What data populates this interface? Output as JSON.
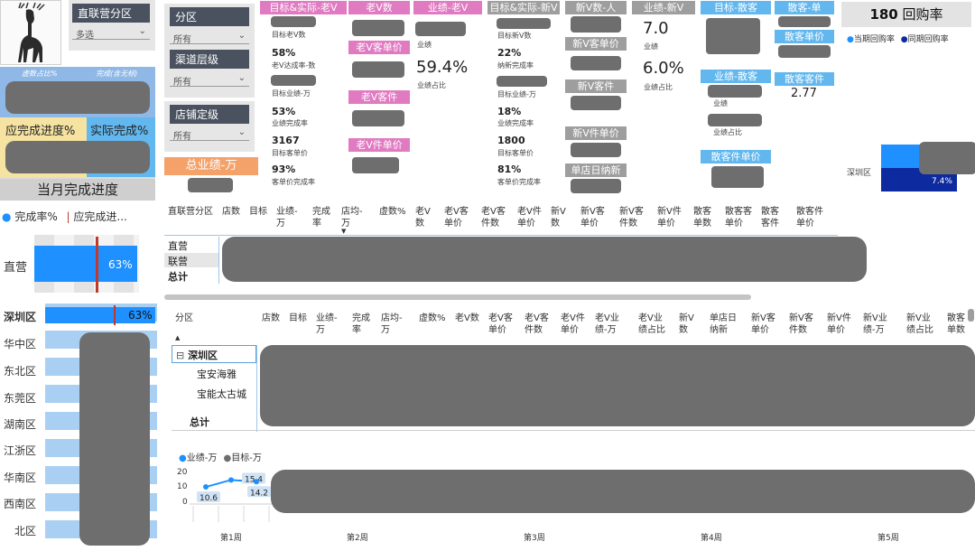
{
  "slicers": {
    "region": {
      "title": "直联营分区",
      "value": "多选"
    },
    "zone": {
      "title": "分区",
      "value": "所有"
    },
    "channel": {
      "title": "渠道层级",
      "value": "所有"
    },
    "store_level": {
      "title": "店铺定级",
      "value": "所有"
    }
  },
  "left_cards": {
    "virtual_ratio_label": "虚数占比%",
    "completion_label": "完成(含无标)",
    "should_progress": "应完成进度%",
    "actual_progress": "实际完成%",
    "month_progress_title": "当月完成进度",
    "total_perf": "总业绩-万"
  },
  "old_v": {
    "header_target": "目标&实际-老V",
    "target_old_v_label": "目标老V数",
    "rate_pct": "58%",
    "rate_label": "老V达成率-数",
    "target_perf_label": "目标业绩-万",
    "perf_rate_pct": "53%",
    "perf_rate_label": "业绩完成率",
    "target_unit_price": "3167",
    "target_unit_price_label": "目标客单价",
    "unit_price_rate": "93%",
    "unit_price_rate_label": "客单价完成率",
    "count_header": "老V数",
    "unit_price_header": "老V客单价",
    "item_price_header": "老V客件",
    "item_unit_header": "老V件单价",
    "perf_header": "业绩-老V",
    "perf_label": "业绩",
    "perf_share": "59.4%",
    "perf_share_label": "业绩占比"
  },
  "new_v": {
    "header_target": "目标&实际-新V",
    "target_new_v_label": "目标新V数",
    "rate_pct": "22%",
    "rate_label": "纳新完成率",
    "target_perf_label": "目标业绩-万",
    "perf_rate_pct": "18%",
    "perf_rate_label": "业绩完成率",
    "target_unit_price": "1800",
    "target_unit_price_label": "目标客单价",
    "unit_price_rate": "81%",
    "unit_price_rate_label": "客单价完成率",
    "count_header": "新V数-人",
    "unit_price_header": "新V客单价",
    "item_header": "新V客件",
    "item_unit_header": "新V件单价",
    "store_daily_header": "单店日纳新",
    "perf_header": "业绩-新V",
    "perf_value": "7.0",
    "perf_label": "业绩",
    "perf_share": "6.0%",
    "perf_share_label": "业绩占比"
  },
  "walkin": {
    "target_header": "目标-散客",
    "perf_header": "业绩-散客",
    "perf_label": "业绩",
    "perf_share_label": "业绩占比",
    "single_header": "散客-单",
    "unit_price_header": "散客单价",
    "item_header": "散客客件",
    "item_value": "2.77",
    "item_unit_header": "散客件单价"
  },
  "repurchase": {
    "count": "180",
    "title": "回购率",
    "legend_current": "当期回购率",
    "legend_prior": "同期回购率",
    "region": "深圳区",
    "value": "7.4%"
  },
  "progress_chart": {
    "legend_done": "完成率%",
    "legend_should": "应完成进...",
    "category": "直营",
    "value": "63%"
  },
  "region_list": {
    "items": [
      "深圳区",
      "华中区",
      "东北区",
      "东莞区",
      "湖南区",
      "江浙区",
      "华南区",
      "西南区",
      "北区"
    ],
    "top_value": "63%"
  },
  "table1": {
    "headers": [
      "直联营分区",
      "店数",
      "目标",
      "业绩-\n万",
      "完成\n率",
      "店均-\n万",
      "虚数%",
      "老V\n数",
      "老V客\n单价",
      "老V客\n件数",
      "老V件\n单价",
      "新V\n数",
      "新V客\n单价",
      "新V客\n件数",
      "新V件\n单价",
      "散客\n单数",
      "散客客\n单价",
      "散客\n客件",
      "散客件\n单价"
    ],
    "rows": [
      "直营",
      "联营"
    ],
    "total": "总计"
  },
  "table2": {
    "headers": [
      "分区",
      "店数",
      "目标",
      "业绩-\n万",
      "完成\n率",
      "店均-\n万",
      "虚数%",
      "老V数",
      "老V客\n单价",
      "老V客\n件数",
      "老V件\n单价",
      "老V业\n绩-万",
      "老V业\n绩占比",
      "新V\n数",
      "单店日\n纳新",
      "新V客\n单价",
      "新V客\n件数",
      "新V件\n单价",
      "新V业\n绩-万",
      "新V业\n绩占比",
      "散客\n单数"
    ],
    "group": "深圳区",
    "group_toggle": "⊟",
    "rows": [
      "宝安海雅",
      "宝能太古城"
    ],
    "total": "总计"
  },
  "line_chart": {
    "legend_perf": "业绩-万",
    "legend_target": "目标-万",
    "y_ticks": [
      "20",
      "10",
      "0"
    ],
    "labels": [
      "10.6",
      "15.4",
      "14.2"
    ],
    "weeks": [
      "第1周",
      "第2周",
      "第3周",
      "第4周",
      "第5周"
    ]
  },
  "chart_data": {
    "type": "line",
    "title": "",
    "xlabel": "",
    "ylabel": "",
    "ylim": [
      0,
      20
    ],
    "series": [
      {
        "name": "业绩-万",
        "values": [
          10.6,
          15.4,
          14.2
        ]
      },
      {
        "name": "目标-万",
        "values": []
      }
    ]
  },
  "colors": {
    "accent_blue": "#1e90ff",
    "dark_navy": "#0d2a9e",
    "pink": "#e07ac1",
    "orange": "#f4a26a",
    "yellow": "#f6e3a1",
    "redact": "#6e6e6e",
    "red_marker": "#c0392b"
  }
}
